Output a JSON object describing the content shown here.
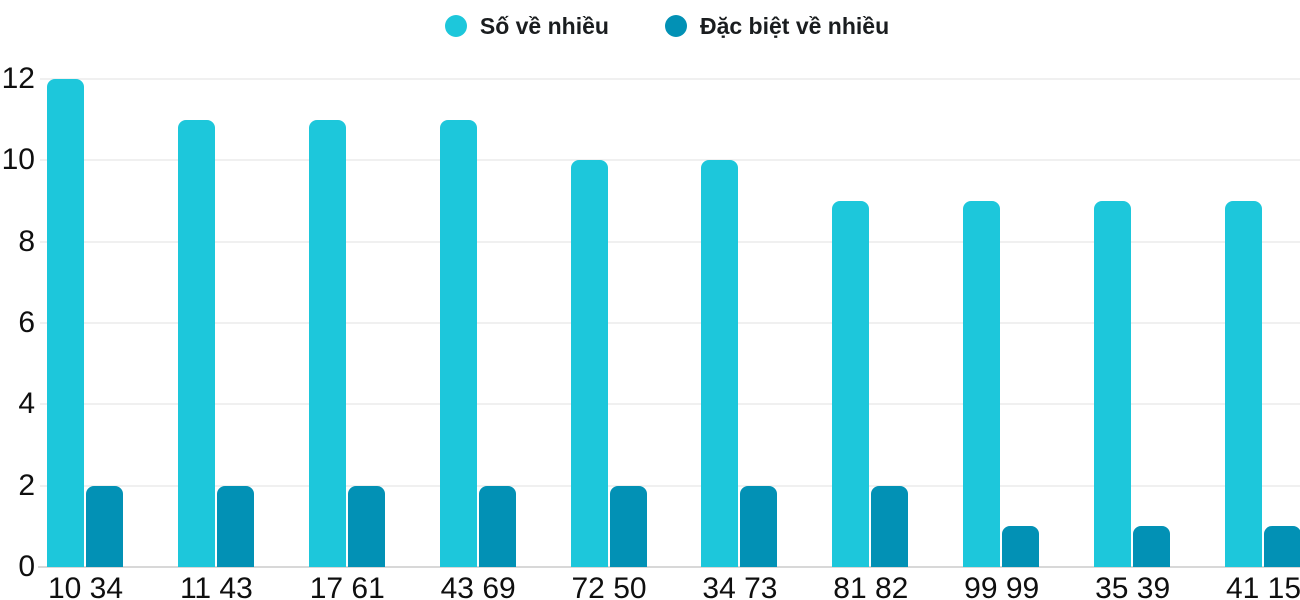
{
  "colors": {
    "series_primary": "#1dc7db",
    "series_secondary": "#0291b5",
    "gridline": "#f0f0f0",
    "axis_line": "#d8d8d8",
    "axis_text": "#0f0f0f",
    "legend_text": "#1a1d1f"
  },
  "chart_data": {
    "type": "bar",
    "title": "",
    "xlabel": "",
    "ylabel": "",
    "categories": [
      "10 34",
      "11 43",
      "17 61",
      "43 69",
      "72 50",
      "34 73",
      "81 82",
      "99 99",
      "35 39",
      "41 15"
    ],
    "series": [
      {
        "name": "Số về nhiều",
        "color": "#1dc7db",
        "values": [
          12,
          11,
          11,
          11,
          10,
          10,
          9,
          9,
          9,
          9
        ]
      },
      {
        "name": "Đặc biệt về nhiều",
        "color": "#0291b5",
        "values": [
          2,
          2,
          2,
          2,
          2,
          2,
          2,
          1,
          1,
          1
        ]
      }
    ],
    "yticks": [
      0,
      2,
      4,
      6,
      8,
      10,
      12
    ],
    "ylim": [
      0,
      12
    ],
    "grid": true,
    "legend_position": "top-center"
  }
}
